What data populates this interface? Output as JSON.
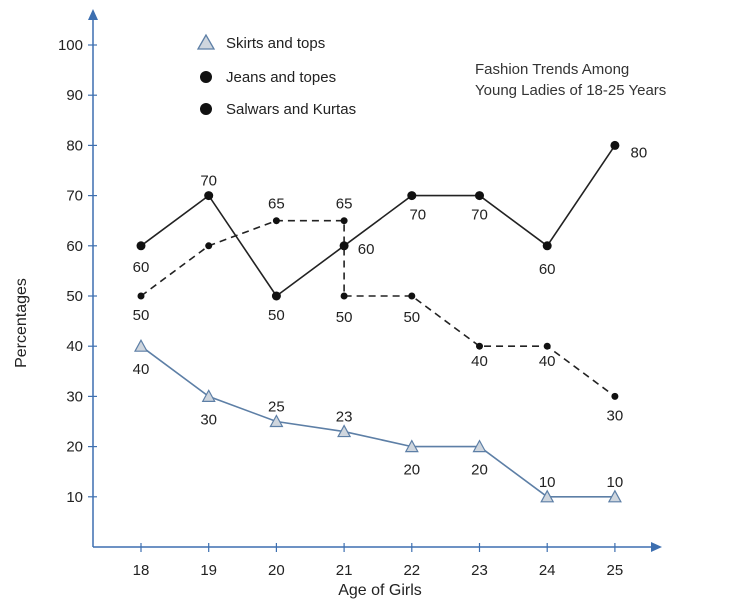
{
  "chart_data": {
    "type": "line",
    "title": "",
    "annotation": [
      "Fashion Trends Among",
      "Young Ladies of 18-25 Years"
    ],
    "xlabel": "Age of Girls",
    "ylabel": "Percentages",
    "x": [
      18,
      19,
      20,
      21,
      22,
      23,
      24,
      25
    ],
    "x_tick_labels": [
      "18",
      "19",
      "20",
      "21",
      "22",
      "23",
      "24",
      "25"
    ],
    "y_ticks": [
      10,
      20,
      30,
      40,
      50,
      60,
      70,
      80,
      90,
      100
    ],
    "y_tick_labels": [
      "10",
      "20",
      "30",
      "40",
      "50",
      "60",
      "70",
      "80",
      "90",
      "100"
    ],
    "ylim": [
      0,
      100
    ],
    "grid": false,
    "legend_position": "top-center",
    "series": [
      {
        "name": "Skirts and tops",
        "values": [
          40,
          30,
          25,
          23,
          20,
          20,
          10,
          10
        ],
        "value_labels": [
          "40",
          "30",
          "25",
          "23",
          "20",
          "20",
          "10",
          "10"
        ],
        "marker": "triangle",
        "line_style": "solid",
        "color": "#5d7fa6",
        "label_color": "#222222"
      },
      {
        "name": "Jeans and topes",
        "values": [
          50,
          60,
          65,
          65,
          50,
          50,
          40,
          40,
          30
        ],
        "x": [
          18,
          19,
          20,
          21,
          21,
          22,
          23,
          24,
          25
        ],
        "value_labels": [
          "50",
          "",
          "65",
          "65",
          "50",
          "50",
          "40",
          "40",
          "30"
        ],
        "marker": "circle",
        "line_style": "dashed",
        "color": "#222222",
        "label_color": "#555555"
      },
      {
        "name": "Salwars and Kurtas",
        "values": [
          60,
          70,
          50,
          60,
          70,
          70,
          60,
          80
        ],
        "value_labels": [
          "60",
          "70",
          "50",
          "60",
          "70",
          "70",
          "60",
          "80"
        ],
        "marker": "circle",
        "line_style": "solid",
        "color": "#222222",
        "label_color": "#222222"
      }
    ],
    "colors": {
      "axis": "#3d6fb0",
      "text": "#222222"
    }
  }
}
